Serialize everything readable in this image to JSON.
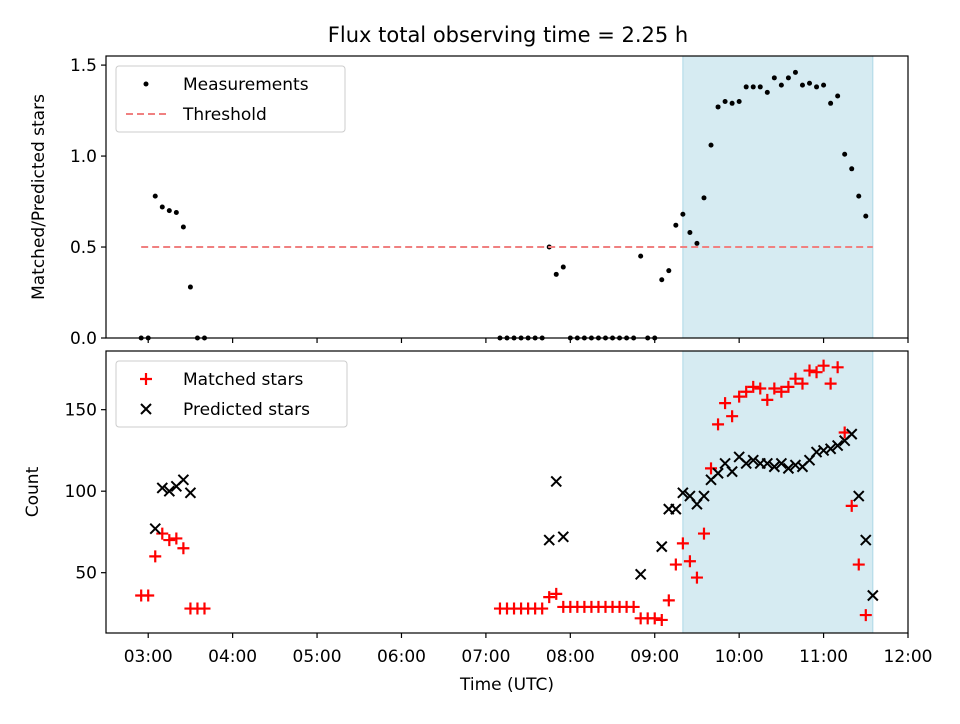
{
  "chart_data": {
    "title": "Flux total observing time = 2.25 h",
    "xlabel": "Time (UTC)",
    "x_ticks": [
      "03:00",
      "04:00",
      "05:00",
      "06:00",
      "07:00",
      "08:00",
      "09:00",
      "10:00",
      "11:00",
      "12:00"
    ],
    "xlim": [
      "02:30",
      "12:00"
    ],
    "shaded_span": {
      "from": "09:20",
      "to": "11:35",
      "color": "#add8e6"
    },
    "panels": [
      {
        "type": "scatter",
        "ylabel": "Matched/Predicted stars",
        "ylim": [
          0,
          1.55
        ],
        "y_ticks": [
          "0.0",
          "0.5",
          "1.0",
          "1.5"
        ],
        "y_tick_values": [
          0,
          0.5,
          1.0,
          1.5
        ],
        "legend_position": "top-left",
        "series": [
          {
            "name": "Measurements",
            "marker": "dot",
            "color": "#000000",
            "points": [
              [
                "02:55",
                0.0
              ],
              [
                "03:00",
                0.0
              ],
              [
                "03:05",
                0.78
              ],
              [
                "03:10",
                0.72
              ],
              [
                "03:15",
                0.7
              ],
              [
                "03:20",
                0.69
              ],
              [
                "03:25",
                0.61
              ],
              [
                "03:30",
                0.28
              ],
              [
                "03:35",
                0.0
              ],
              [
                "03:40",
                0.0
              ],
              [
                "07:10",
                0.0
              ],
              [
                "07:15",
                0.0
              ],
              [
                "07:20",
                0.0
              ],
              [
                "07:25",
                0.0
              ],
              [
                "07:30",
                0.0
              ],
              [
                "07:35",
                0.0
              ],
              [
                "07:40",
                0.0
              ],
              [
                "07:45",
                0.5
              ],
              [
                "07:50",
                0.35
              ],
              [
                "07:55",
                0.39
              ],
              [
                "08:00",
                0.0
              ],
              [
                "08:05",
                0.0
              ],
              [
                "08:10",
                0.0
              ],
              [
                "08:15",
                0.0
              ],
              [
                "08:20",
                0.0
              ],
              [
                "08:25",
                0.0
              ],
              [
                "08:30",
                0.0
              ],
              [
                "08:35",
                0.0
              ],
              [
                "08:40",
                0.0
              ],
              [
                "08:45",
                0.0
              ],
              [
                "08:50",
                0.45
              ],
              [
                "08:55",
                0.0
              ],
              [
                "09:00",
                0.0
              ],
              [
                "09:05",
                0.32
              ],
              [
                "09:10",
                0.37
              ],
              [
                "09:15",
                0.62
              ],
              [
                "09:20",
                0.68
              ],
              [
                "09:25",
                0.58
              ],
              [
                "09:30",
                0.52
              ],
              [
                "09:35",
                0.77
              ],
              [
                "09:40",
                1.06
              ],
              [
                "09:45",
                1.27
              ],
              [
                "09:50",
                1.3
              ],
              [
                "09:55",
                1.29
              ],
              [
                "10:00",
                1.3
              ],
              [
                "10:05",
                1.38
              ],
              [
                "10:10",
                1.38
              ],
              [
                "10:15",
                1.38
              ],
              [
                "10:20",
                1.35
              ],
              [
                "10:25",
                1.43
              ],
              [
                "10:30",
                1.39
              ],
              [
                "10:35",
                1.43
              ],
              [
                "10:40",
                1.46
              ],
              [
                "10:45",
                1.39
              ],
              [
                "10:50",
                1.4
              ],
              [
                "10:55",
                1.38
              ],
              [
                "11:00",
                1.39
              ],
              [
                "11:05",
                1.29
              ],
              [
                "11:10",
                1.33
              ],
              [
                "11:15",
                1.01
              ],
              [
                "11:20",
                0.93
              ],
              [
                "11:25",
                0.78
              ],
              [
                "11:30",
                0.67
              ]
            ]
          },
          {
            "name": "Threshold",
            "marker": "dashed-line",
            "color": "#f08080",
            "points": [
              [
                "02:55",
                0.5
              ],
              [
                "11:35",
                0.5
              ]
            ]
          }
        ]
      },
      {
        "type": "scatter",
        "ylabel": "Count",
        "ylim": [
          13,
          186
        ],
        "y_ticks": [
          "50",
          "100",
          "150"
        ],
        "y_tick_values": [
          50,
          100,
          150
        ],
        "legend_position": "top-left",
        "series": [
          {
            "name": "Matched stars",
            "marker": "plus",
            "color": "#ff0000",
            "points": [
              [
                "02:55",
                36
              ],
              [
                "03:00",
                36
              ],
              [
                "03:05",
                60
              ],
              [
                "03:10",
                74
              ],
              [
                "03:15",
                70
              ],
              [
                "03:20",
                71
              ],
              [
                "03:25",
                65
              ],
              [
                "03:30",
                28
              ],
              [
                "03:35",
                28
              ],
              [
                "03:40",
                28
              ],
              [
                "07:10",
                28
              ],
              [
                "07:15",
                28
              ],
              [
                "07:20",
                28
              ],
              [
                "07:25",
                28
              ],
              [
                "07:30",
                28
              ],
              [
                "07:35",
                28
              ],
              [
                "07:40",
                28
              ],
              [
                "07:45",
                35
              ],
              [
                "07:50",
                37
              ],
              [
                "07:55",
                29
              ],
              [
                "08:00",
                29
              ],
              [
                "08:05",
                29
              ],
              [
                "08:10",
                29
              ],
              [
                "08:15",
                29
              ],
              [
                "08:20",
                29
              ],
              [
                "08:25",
                29
              ],
              [
                "08:30",
                29
              ],
              [
                "08:35",
                29
              ],
              [
                "08:40",
                29
              ],
              [
                "08:45",
                29
              ],
              [
                "08:50",
                22
              ],
              [
                "08:55",
                22
              ],
              [
                "09:00",
                22
              ],
              [
                "09:05",
                21
              ],
              [
                "09:10",
                33
              ],
              [
                "09:15",
                55
              ],
              [
                "09:20",
                68
              ],
              [
                "09:25",
                57
              ],
              [
                "09:30",
                47
              ],
              [
                "09:35",
                74
              ],
              [
                "09:40",
                114
              ],
              [
                "09:45",
                141
              ],
              [
                "09:50",
                154
              ],
              [
                "09:55",
                146
              ],
              [
                "10:00",
                158
              ],
              [
                "10:05",
                161
              ],
              [
                "10:10",
                164
              ],
              [
                "10:15",
                163
              ],
              [
                "10:20",
                156
              ],
              [
                "10:25",
                163
              ],
              [
                "10:30",
                161
              ],
              [
                "10:35",
                164
              ],
              [
                "10:40",
                169
              ],
              [
                "10:45",
                166
              ],
              [
                "10:50",
                174
              ],
              [
                "10:55",
                173
              ],
              [
                "11:00",
                177
              ],
              [
                "11:05",
                166
              ],
              [
                "11:10",
                176
              ],
              [
                "11:15",
                136
              ],
              [
                "11:20",
                91
              ],
              [
                "11:25",
                55
              ],
              [
                "11:30",
                24
              ]
            ]
          },
          {
            "name": "Predicted stars",
            "marker": "x",
            "color": "#000000",
            "points": [
              [
                "03:05",
                77
              ],
              [
                "03:10",
                102
              ],
              [
                "03:15",
                100
              ],
              [
                "03:20",
                103
              ],
              [
                "03:25",
                107
              ],
              [
                "03:30",
                99
              ],
              [
                "07:45",
                70
              ],
              [
                "07:50",
                106
              ],
              [
                "07:55",
                72
              ],
              [
                "08:50",
                49
              ],
              [
                "09:05",
                66
              ],
              [
                "09:10",
                89
              ],
              [
                "09:15",
                89
              ],
              [
                "09:20",
                99
              ],
              [
                "09:25",
                97
              ],
              [
                "09:30",
                92
              ],
              [
                "09:35",
                97
              ],
              [
                "09:40",
                107
              ],
              [
                "09:45",
                111
              ],
              [
                "09:50",
                117
              ],
              [
                "09:55",
                112
              ],
              [
                "10:00",
                121
              ],
              [
                "10:05",
                117
              ],
              [
                "10:10",
                119
              ],
              [
                "10:15",
                117
              ],
              [
                "10:20",
                117
              ],
              [
                "10:25",
                115
              ],
              [
                "10:30",
                117
              ],
              [
                "10:35",
                114
              ],
              [
                "10:40",
                116
              ],
              [
                "10:45",
                115
              ],
              [
                "10:50",
                119
              ],
              [
                "10:55",
                124
              ],
              [
                "11:00",
                125
              ],
              [
                "11:05",
                126
              ],
              [
                "11:10",
                128
              ],
              [
                "11:15",
                131
              ],
              [
                "11:20",
                135
              ],
              [
                "11:25",
                97
              ],
              [
                "11:30",
                70
              ],
              [
                "11:35",
                36
              ]
            ]
          }
        ]
      }
    ]
  }
}
